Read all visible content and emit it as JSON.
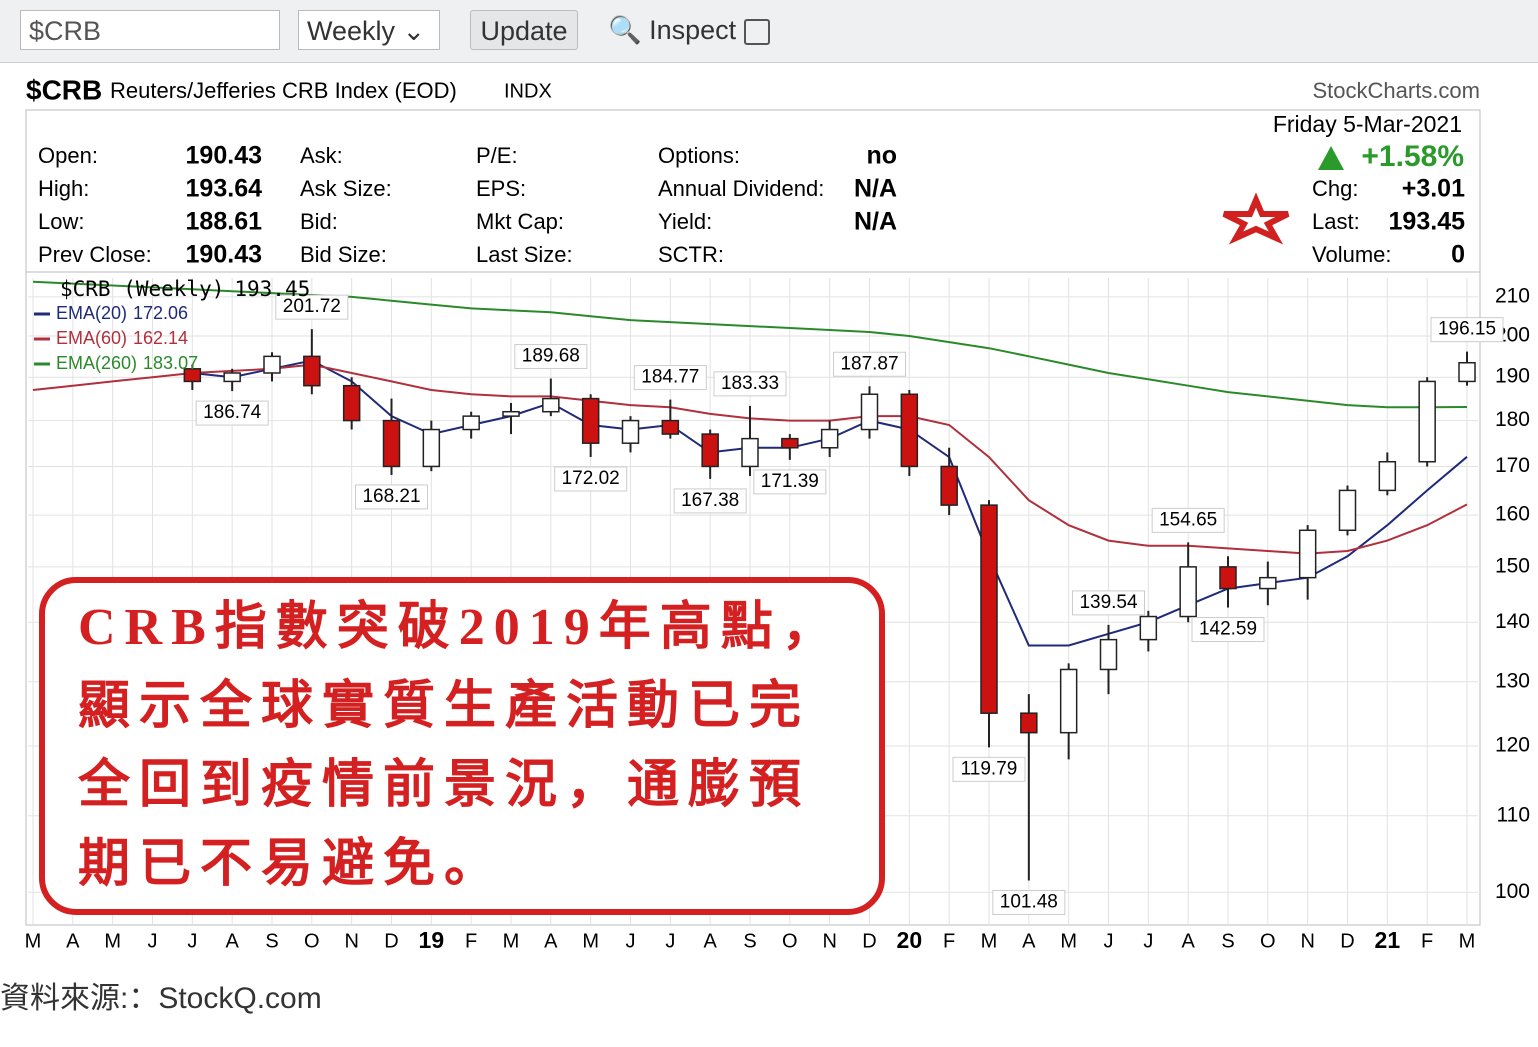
{
  "toolbar": {
    "symbol": "$CRB",
    "period": "Weekly",
    "button": "Update",
    "inspect": "Inspect"
  },
  "header": {
    "symbol": "$CRB",
    "name": "Reuters/Jefferies CRB Index (EOD)",
    "exchange": "INDX",
    "credit": "StockCharts.com"
  },
  "quote": {
    "rows": [
      [
        "Open:",
        "190.43",
        "Ask:",
        "P/E:",
        "Options:",
        "no"
      ],
      [
        "High:",
        "193.64",
        "Ask Size:",
        "EPS:",
        "Annual Dividend:",
        "N/A"
      ],
      [
        "Low:",
        "188.61",
        "Bid:",
        "Mkt Cap:",
        "Yield:",
        "N/A"
      ],
      [
        "Prev Close:",
        "190.43",
        "Bid Size:",
        "Last Size:",
        "SCTR:",
        null
      ]
    ],
    "date": "Friday  5-Mar-2021",
    "change": "+1.58%",
    "stats": [
      [
        "Chg:",
        "+3.01"
      ],
      [
        "Last:",
        "193.45"
      ],
      [
        "Volume:",
        "0"
      ]
    ]
  },
  "chart_data": {
    "type": "candlestick",
    "log_scale": true,
    "grid": true,
    "categories": [
      "M",
      "A",
      "M",
      "J",
      "J",
      "A",
      "S",
      "O",
      "N",
      "D",
      "19",
      "F",
      "M",
      "A",
      "M",
      "J",
      "J",
      "A",
      "S",
      "O",
      "N",
      "D",
      "20",
      "F",
      "M",
      "A",
      "M",
      "J",
      "J",
      "A",
      "S",
      "O",
      "N",
      "D",
      "21",
      "F",
      "M"
    ],
    "candles": {
      "name": "$CRB (Weekly)",
      "open": [
        null,
        null,
        null,
        null,
        192,
        189,
        191,
        195,
        188,
        180,
        170,
        178,
        181,
        182,
        185,
        175,
        180,
        177,
        170,
        176,
        174,
        178,
        186,
        170,
        162,
        125,
        122,
        132,
        137,
        141,
        150,
        146,
        148,
        157,
        165,
        171,
        189
      ],
      "high": [
        null,
        null,
        null,
        null,
        193,
        192,
        196,
        201.72,
        190,
        185,
        180,
        182,
        184,
        189.68,
        186,
        181,
        184.77,
        178,
        183.33,
        177,
        180,
        187.87,
        187,
        174,
        163,
        128,
        133,
        139.54,
        142,
        154.65,
        152,
        151,
        158,
        166,
        173,
        190,
        196.15
      ],
      "low": [
        null,
        null,
        null,
        null,
        187,
        186.74,
        189,
        186,
        178,
        168.21,
        169,
        176,
        177,
        181,
        172.02,
        173,
        176,
        167.38,
        168,
        171.39,
        172,
        176,
        168,
        160,
        119.79,
        101.48,
        118,
        128,
        135,
        140,
        142.59,
        143,
        144,
        156,
        164,
        170,
        188
      ],
      "close": [
        null,
        null,
        null,
        null,
        189,
        191,
        195,
        188,
        180,
        170,
        178,
        181,
        182,
        185,
        175,
        180,
        177,
        170,
        176,
        174,
        178,
        186,
        170,
        162,
        125,
        122,
        132,
        137,
        141,
        150,
        146,
        148,
        157,
        165,
        171,
        189,
        193.45
      ],
      "high_labels": [
        null,
        null,
        null,
        null,
        null,
        null,
        null,
        "201.72",
        null,
        null,
        null,
        null,
        null,
        "189.68",
        null,
        null,
        "184.77",
        null,
        "183.33",
        null,
        null,
        "187.87",
        null,
        null,
        null,
        null,
        null,
        "139.54",
        null,
        "154.65",
        null,
        null,
        null,
        null,
        null,
        null,
        "196.15"
      ],
      "low_labels": [
        null,
        null,
        null,
        null,
        null,
        "186.74",
        null,
        null,
        null,
        "168.21",
        null,
        null,
        null,
        null,
        "172.02",
        null,
        null,
        "167.38",
        null,
        "171.39",
        null,
        null,
        null,
        null,
        "119.79",
        "101.48",
        null,
        null,
        null,
        null,
        "142.59",
        null,
        null,
        null,
        null,
        null,
        null
      ],
      "up_color": "#ffffff",
      "down_color": "#cc1111"
    },
    "series": [
      {
        "name": "EMA(20)",
        "color": "#1f2a7a",
        "values": [
          null,
          null,
          null,
          null,
          191,
          190,
          192,
          194,
          189,
          181,
          177,
          179,
          181,
          184,
          179,
          178,
          179,
          173,
          174,
          174,
          176,
          180,
          178,
          172,
          152,
          136,
          136,
          138,
          140,
          143,
          146,
          147,
          148,
          152,
          158,
          165,
          172.06
        ]
      },
      {
        "name": "EMA(60)",
        "color": "#b0303c",
        "values": [
          187,
          188,
          189,
          190,
          191,
          191.5,
          192,
          193,
          191,
          189,
          187,
          186,
          185.5,
          185.5,
          184.5,
          183.5,
          183,
          181.5,
          180.5,
          180,
          180,
          181,
          181,
          179,
          172,
          163,
          158,
          155,
          154,
          154,
          153.5,
          153,
          152.5,
          153,
          155,
          158,
          162.14
        ]
      },
      {
        "name": "EMA(260)",
        "color": "#2a8a2a",
        "values": [
          214,
          213.5,
          213,
          212.5,
          212,
          211.5,
          211,
          210.5,
          210,
          209,
          208,
          207,
          206.5,
          206,
          205,
          204,
          203.5,
          203,
          202.5,
          202,
          201.5,
          201,
          200,
          198.5,
          197,
          195,
          193,
          191,
          189.5,
          188,
          186.5,
          185.5,
          184.5,
          183.5,
          183,
          183,
          183.07
        ]
      }
    ],
    "ylim": [
      96,
      215
    ],
    "yticks": [
      100,
      110,
      120,
      130,
      140,
      150,
      160,
      170,
      180,
      190,
      200,
      210
    ]
  },
  "note": {
    "lines": [
      "CRB指數突破2019年高點，",
      "顯示全球實質生產活動已完",
      "全回到疫情前景況，通膨預",
      "期已不易避免。"
    ]
  },
  "source": "資料來源:：StockQ.com"
}
